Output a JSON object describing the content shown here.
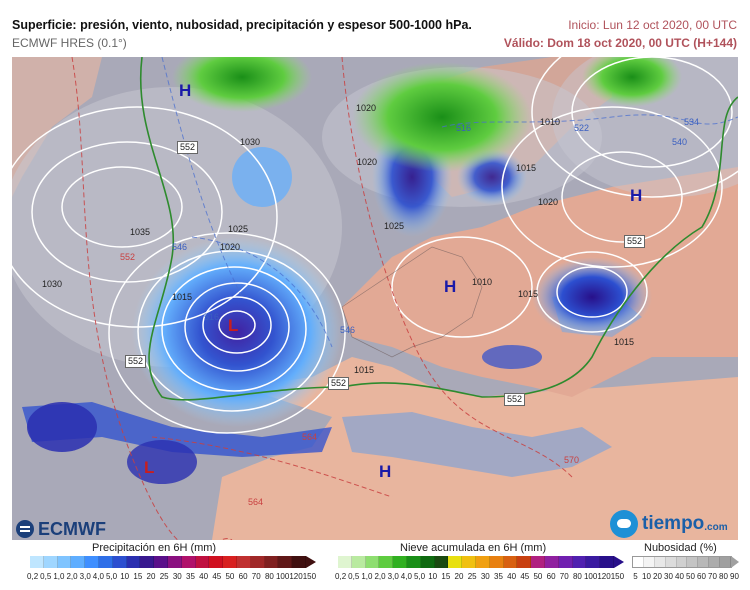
{
  "header": {
    "title": "Superficie: presión, viento, nubosidad, precipitación y espesor 500-1000 hPa.",
    "subtitle": "ECMWF HRES (0.1°)",
    "run": "Inicio: Lun 12 oct 2020, 00 UTC",
    "valid": "Válido: Dom 18 oct 2020, 00 UTC (H+144)"
  },
  "map": {
    "centers": [
      {
        "type": "H",
        "label": "H"
      },
      {
        "type": "H",
        "label": "H"
      },
      {
        "type": "H",
        "label": "H"
      },
      {
        "type": "H",
        "label": "H"
      },
      {
        "type": "L",
        "label": "L"
      },
      {
        "type": "L",
        "label": "L"
      }
    ],
    "isobars": [
      "1010",
      "1015",
      "1020",
      "1020",
      "1020",
      "1025",
      "1030",
      "1030",
      "1035",
      "1015",
      "1020",
      "1025",
      "1015",
      "1015",
      "1010",
      "1015"
    ],
    "thickness": [
      "516",
      "522",
      "534",
      "540",
      "546",
      "546",
      "516",
      "564",
      "564",
      "570",
      "552"
    ],
    "thickness_boxes": [
      "552",
      "552",
      "552",
      "552",
      "552"
    ]
  },
  "logos": {
    "ecmwf": "ECMWF",
    "tiempo": "tiempo",
    "tiempo_domain": ".com"
  },
  "legends": {
    "precip": {
      "title": "Precipitación en 6H (mm)",
      "colors": [
        "#bfe6ff",
        "#9fd6ff",
        "#7fc4ff",
        "#5faeff",
        "#3f8fff",
        "#2f6fe8",
        "#2c4fd0",
        "#2a2fb0",
        "#38188f",
        "#5a0f8a",
        "#8a1080",
        "#b0106a",
        "#c01040",
        "#d01020",
        "#d82020",
        "#c03030",
        "#a02828",
        "#802020",
        "#601818",
        "#401010"
      ],
      "ticks": [
        "0,2",
        "0,5",
        "1,0",
        "2,0",
        "3,0",
        "4,0",
        "5,0",
        "10",
        "15",
        "20",
        "25",
        "30",
        "35",
        "40",
        "45",
        "50",
        "60",
        "70",
        "80",
        "100",
        "120",
        "150"
      ]
    },
    "snow": {
      "title": "Nieve acumulada en 6H (mm)",
      "colors": [
        "#dff5d0",
        "#b9eaa0",
        "#8ede70",
        "#5fcc40",
        "#30b020",
        "#1a8f18",
        "#0f6a10",
        "#1a4a10",
        "#e8e010",
        "#f0c010",
        "#f0a010",
        "#e88010",
        "#d86010",
        "#c84010",
        "#b02080",
        "#9020a0",
        "#7020b0",
        "#5020b0",
        "#3a1aa0",
        "#28108a"
      ],
      "ticks": [
        "0,2",
        "0,5",
        "1,0",
        "2,0",
        "3,0",
        "4,0",
        "5,0",
        "10",
        "15",
        "20",
        "25",
        "30",
        "35",
        "40",
        "45",
        "50",
        "60",
        "70",
        "80",
        "100",
        "120",
        "150"
      ]
    },
    "cloud": {
      "title": "Nubosidad (%)",
      "colors": [
        "#ffffff",
        "#f4f4f4",
        "#e8e8e8",
        "#dcdcdc",
        "#d0d0d0",
        "#c4c4c4",
        "#b8b8b8",
        "#acacac",
        "#a0a0a0"
      ],
      "ticks": [
        "5",
        "10",
        "20",
        "30",
        "40",
        "50",
        "60",
        "70",
        "80",
        "90"
      ]
    }
  }
}
